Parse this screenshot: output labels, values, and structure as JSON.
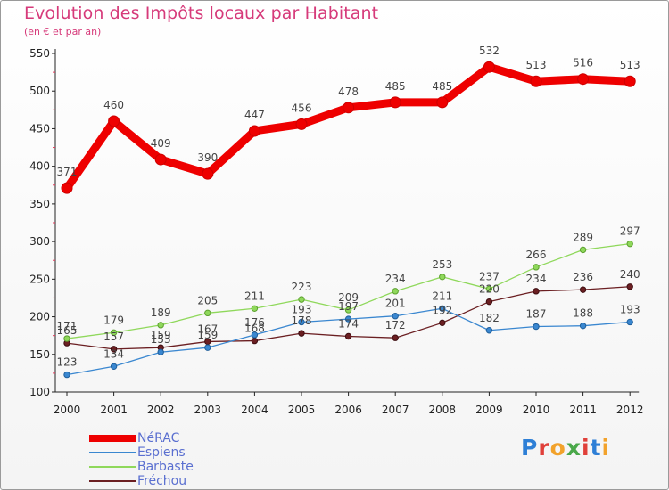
{
  "header": {
    "title": "Evolution des Impôts locaux par Habitant",
    "subtitle": "(en € et par an)"
  },
  "logo": {
    "text": "Proxiti"
  },
  "chart_data": {
    "type": "line",
    "x": [
      "2000",
      "2001",
      "2002",
      "2003",
      "2004",
      "2005",
      "2006",
      "2007",
      "2008",
      "2009",
      "2010",
      "2011",
      "2012"
    ],
    "ylim": [
      100,
      550
    ],
    "yticks": [
      "100",
      "150",
      "200",
      "250",
      "300",
      "350",
      "400",
      "450",
      "500",
      "550"
    ],
    "grid": false,
    "legend_position": "bottom-left",
    "series": [
      {
        "name": "NéRAC",
        "color": "#ee0000",
        "values": [
          371,
          460,
          409,
          390,
          447,
          456,
          478,
          485,
          485,
          532,
          513,
          516,
          513
        ],
        "labels": [
          "371",
          "460",
          "409",
          "390",
          "447",
          "456",
          "478",
          "485",
          "485",
          "532",
          "513",
          "516",
          "513"
        ]
      },
      {
        "name": "Espiens",
        "color": "#3a87d0",
        "values": [
          123,
          134,
          153,
          159,
          176,
          193,
          197,
          201,
          211,
          182,
          187,
          188,
          193
        ],
        "labels": [
          "123",
          "134",
          "153",
          "159",
          "176",
          "193",
          "197",
          "201",
          "211",
          "182",
          "187",
          "188",
          "193"
        ]
      },
      {
        "name": "Barbaste",
        "color": "#8fd85b",
        "values": [
          171,
          179,
          189,
          205,
          211,
          223,
          209,
          234,
          253,
          237,
          266,
          289,
          297
        ],
        "labels": [
          "171",
          "179",
          "189",
          "205",
          "211",
          "223",
          "209",
          "234",
          "253",
          "237",
          "266",
          "289",
          "297"
        ]
      },
      {
        "name": "Fréchou",
        "color": "#6b1f22",
        "values": [
          165,
          157,
          159,
          167,
          168,
          178,
          174,
          172,
          192,
          220,
          234,
          236,
          240
        ],
        "labels": [
          "165",
          "157",
          "159",
          "167",
          "168",
          "178",
          "174",
          "172",
          "192",
          "220",
          "234",
          "236",
          "240"
        ]
      }
    ]
  }
}
